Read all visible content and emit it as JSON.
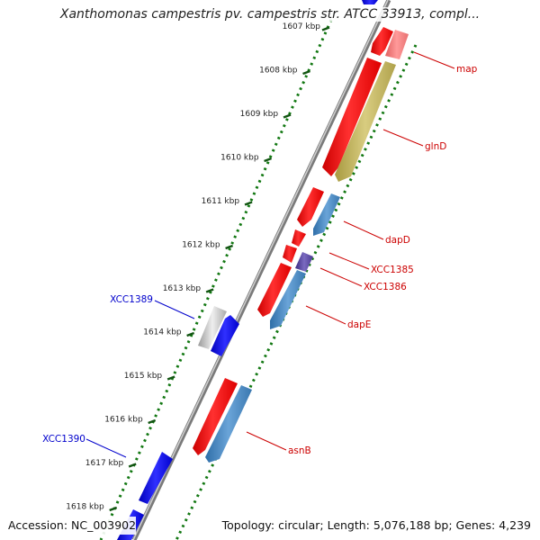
{
  "title": "Xanthomonas campestris pv. campestris str. ATCC 33913, compl...",
  "footer": {
    "accession": "Accession: NC_003902",
    "topology": "Topology: circular; Length: 5,076,188 bp; Genes: 4,239"
  },
  "colors": {
    "backbone": "#888888",
    "forward_cds": "#ff0000",
    "reverse_cds": "#4a86c0",
    "glnD": "#c8bc6a",
    "map": "#f08080",
    "XCC1386": "#5a4aa0",
    "label_red": "#cc0000",
    "label_blue": "#0000cc",
    "other_gene": "#0000ff",
    "hypothetical": "#c8c8c8",
    "tick_dots": "#228822",
    "dots_outer": "#116611"
  },
  "ticks": [
    {
      "kbp": 1607,
      "label": "1607 kbp"
    },
    {
      "kbp": 1608,
      "label": "1608 kbp"
    },
    {
      "kbp": 1609,
      "label": "1609 kbp"
    },
    {
      "kbp": 1610,
      "label": "1610 kbp"
    },
    {
      "kbp": 1611,
      "label": "1611 kbp"
    },
    {
      "kbp": 1612,
      "label": "1612 kbp"
    },
    {
      "kbp": 1613,
      "label": "1613 kbp"
    },
    {
      "kbp": 1614,
      "label": "1614 kbp"
    },
    {
      "kbp": 1615,
      "label": "1615 kbp"
    },
    {
      "kbp": 1616,
      "label": "1616 kbp"
    },
    {
      "kbp": 1617,
      "label": "1617 kbp"
    },
    {
      "kbp": 1618,
      "label": "1618 kbp"
    }
  ],
  "genes": [
    {
      "name": "map",
      "labeled": true,
      "label_color": "label_red",
      "side": "right"
    },
    {
      "name": "glnD",
      "labeled": true,
      "label_color": "label_red",
      "side": "right"
    },
    {
      "name": "dapD",
      "labeled": true,
      "label_color": "label_red",
      "side": "right"
    },
    {
      "name": "XCC1385",
      "labeled": true,
      "label_color": "label_red",
      "side": "right"
    },
    {
      "name": "XCC1386",
      "labeled": true,
      "label_color": "label_red",
      "side": "right"
    },
    {
      "name": "dapE",
      "labeled": true,
      "label_color": "label_red",
      "side": "right"
    },
    {
      "name": "asnB",
      "labeled": true,
      "label_color": "label_red",
      "side": "right"
    },
    {
      "name": "XCC1389",
      "labeled": true,
      "label_color": "label_blue",
      "side": "left"
    },
    {
      "name": "XCC1390",
      "labeled": true,
      "label_color": "label_blue",
      "side": "left"
    }
  ]
}
